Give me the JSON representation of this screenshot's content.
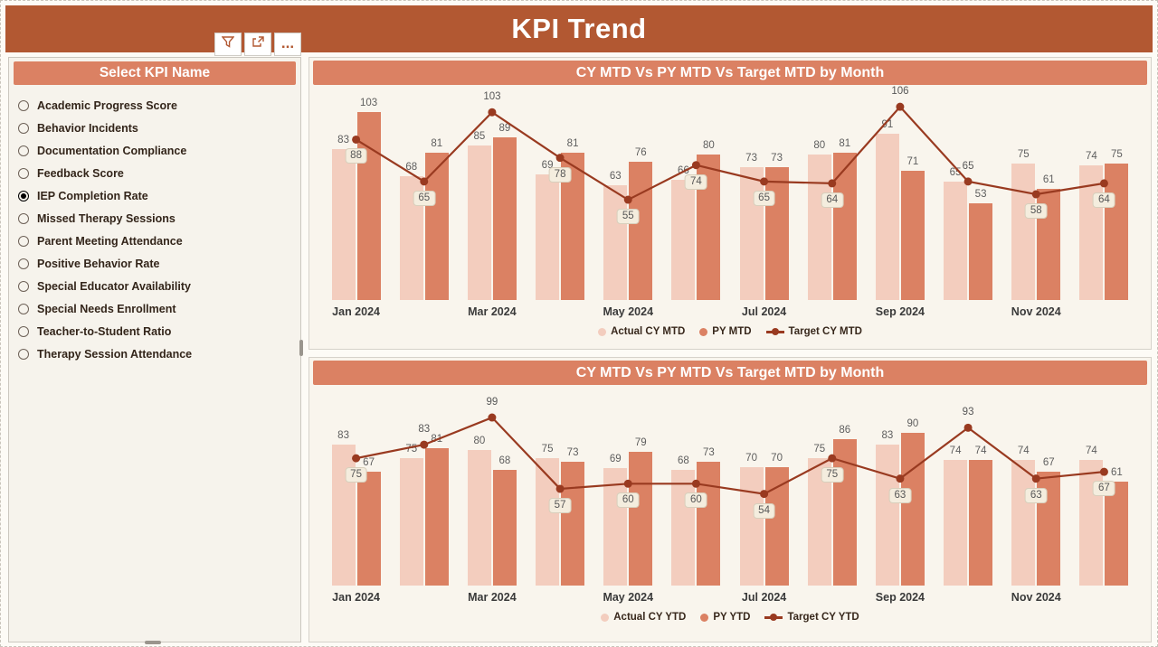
{
  "header": {
    "title": "KPI Trend"
  },
  "toolbar": {
    "buttons": [
      {
        "name": "filter"
      },
      {
        "name": "focus-mode"
      },
      {
        "name": "more-options",
        "glyph": "..."
      }
    ]
  },
  "slicer": {
    "title": "Select KPI Name",
    "items": [
      {
        "label": "Academic Progress Score",
        "selected": false
      },
      {
        "label": "Behavior Incidents",
        "selected": false
      },
      {
        "label": "Documentation Compliance",
        "selected": false
      },
      {
        "label": "Feedback Score",
        "selected": false
      },
      {
        "label": "IEP Completion Rate",
        "selected": true
      },
      {
        "label": "Missed Therapy Sessions",
        "selected": false
      },
      {
        "label": "Parent Meeting Attendance",
        "selected": false
      },
      {
        "label": "Positive Behavior Rate",
        "selected": false
      },
      {
        "label": "Special Educator Availability",
        "selected": false
      },
      {
        "label": "Special Needs Enrollment",
        "selected": false
      },
      {
        "label": "Teacher-to-Student Ratio",
        "selected": false
      },
      {
        "label": "Therapy Session Attendance",
        "selected": false
      }
    ]
  },
  "chart_data": [
    {
      "type": "bar+line",
      "title": "CY MTD Vs PY MTD Vs Target MTD by Month",
      "categories": [
        "Jan 2024",
        "Feb 2024",
        "Mar 2024",
        "Apr 2024",
        "May 2024",
        "Jun 2024",
        "Jul 2024",
        "Aug 2024",
        "Sep 2024",
        "Oct 2024",
        "Nov 2024",
        "Dec 2024"
      ],
      "x_tick_labels": [
        "Jan 2024",
        "Mar 2024",
        "May 2024",
        "Jul 2024",
        "Sep 2024",
        "Nov 2024"
      ],
      "series": [
        {
          "name": "Actual CY MTD",
          "type": "bar",
          "color": "#F3CDBE",
          "values": [
            83,
            68,
            85,
            69,
            63,
            66,
            73,
            80,
            91,
            65,
            75,
            74
          ]
        },
        {
          "name": "PY MTD",
          "type": "bar",
          "color": "#DB8163",
          "values": [
            103,
            81,
            89,
            81,
            76,
            80,
            73,
            81,
            71,
            53,
            61,
            75
          ]
        },
        {
          "name": "Target CY MTD",
          "type": "line",
          "color": "#993A20",
          "values": [
            88,
            65,
            103,
            78,
            55,
            74,
            65,
            64,
            106,
            65,
            58,
            64
          ]
        }
      ],
      "ylim": [
        0,
        115
      ],
      "grid": false,
      "legend_position": "bottom"
    },
    {
      "type": "bar+line",
      "title": "CY MTD Vs PY MTD Vs Target MTD by Month",
      "categories": [
        "Jan 2024",
        "Feb 2024",
        "Mar 2024",
        "Apr 2024",
        "May 2024",
        "Jun 2024",
        "Jul 2024",
        "Aug 2024",
        "Sep 2024",
        "Oct 2024",
        "Nov 2024",
        "Dec 2024"
      ],
      "x_tick_labels": [
        "Jan 2024",
        "Mar 2024",
        "May 2024",
        "Jul 2024",
        "Sep 2024",
        "Nov 2024"
      ],
      "series": [
        {
          "name": "Actual CY YTD",
          "type": "bar",
          "color": "#F3CDBE",
          "values": [
            83,
            75,
            80,
            75,
            69,
            68,
            70,
            75,
            83,
            74,
            74,
            74
          ]
        },
        {
          "name": "PY YTD",
          "type": "bar",
          "color": "#DB8163",
          "values": [
            67,
            81,
            68,
            73,
            79,
            73,
            70,
            86,
            90,
            74,
            67,
            61
          ]
        },
        {
          "name": "Target CY YTD",
          "type": "line",
          "color": "#993A20",
          "values": [
            75,
            83,
            99,
            57,
            60,
            60,
            54,
            75,
            63,
            93,
            63,
            67
          ]
        }
      ],
      "ylim": [
        0,
        115
      ],
      "grid": false,
      "legend_position": "bottom"
    }
  ],
  "colors": {
    "header_bg": "#B25832",
    "accent_bg": "#DB8163",
    "bar_actual": "#F3CDBE",
    "bar_py": "#DB8163",
    "line_target": "#993A20",
    "panel_bg": "#F9F5ED"
  }
}
